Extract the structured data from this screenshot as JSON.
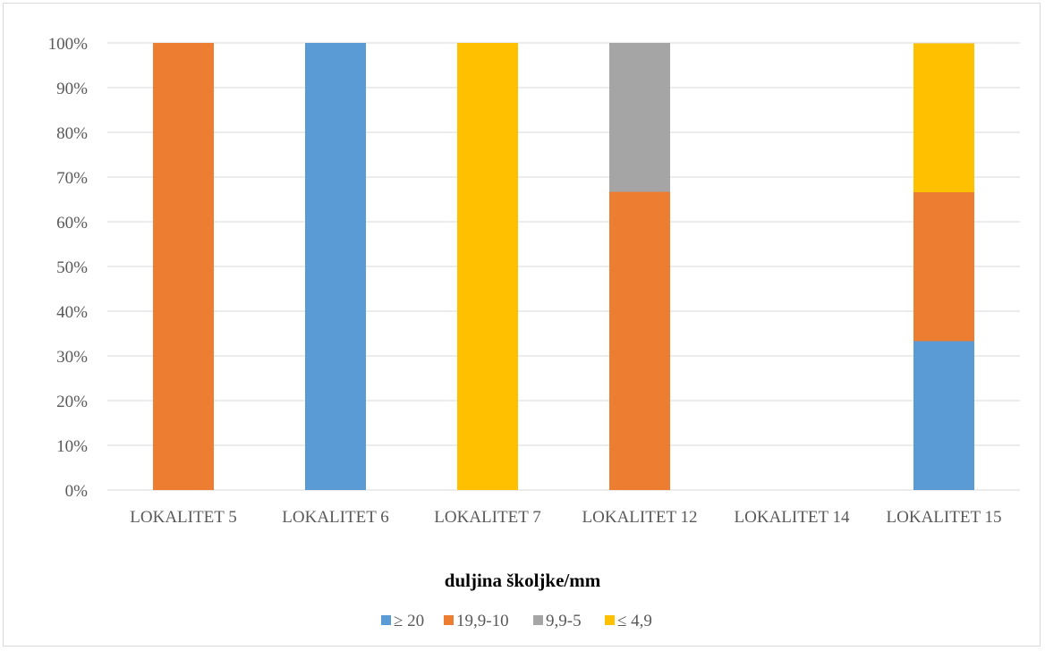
{
  "chart_data": {
    "type": "bar",
    "stacked": true,
    "percent": true,
    "categories": [
      "LOKALITET 5",
      "LOKALITET 6",
      "LOKALITET 7",
      "LOKALITET 12",
      "LOKALITET 14",
      "LOKALITET 15"
    ],
    "series": [
      {
        "name": "≥ 20",
        "color": "#5b9bd5",
        "values": [
          0,
          100,
          0,
          0,
          0,
          33.3
        ]
      },
      {
        "name": "19,9-10",
        "color": "#ed7d31",
        "values": [
          100,
          0,
          0,
          66.7,
          0,
          33.3
        ]
      },
      {
        "name": "9,9-5",
        "color": "#a5a5a5",
        "values": [
          0,
          0,
          0,
          33.3,
          0,
          0
        ]
      },
      {
        "name": "≤ 4,9",
        "color": "#ffc000",
        "values": [
          0,
          0,
          100,
          0,
          0,
          33.3
        ]
      }
    ],
    "y_ticks": [
      "0%",
      "10%",
      "20%",
      "30%",
      "40%",
      "50%",
      "60%",
      "70%",
      "80%",
      "90%",
      "100%"
    ],
    "ylim": [
      0,
      100
    ],
    "xlabel": "duljina školjke/mm",
    "ylabel": "",
    "title": "",
    "grid": true,
    "legend": "bottom"
  }
}
